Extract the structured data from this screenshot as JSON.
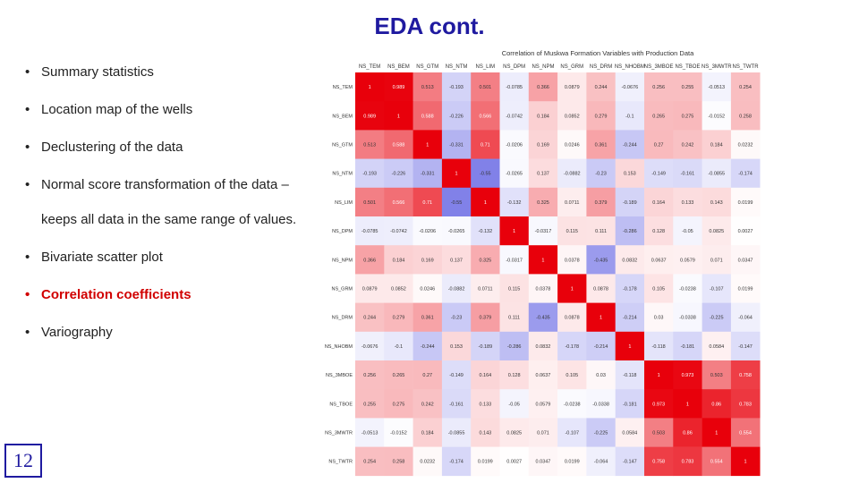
{
  "slide": {
    "title": "EDA cont.",
    "bullets": [
      "Summary statistics",
      "Location map of the wells",
      "Declustering of the data",
      "Normal score transformation of the data –",
      "Bivariate scatter plot",
      "Correlation coefficients",
      "Variography"
    ],
    "bullet_continuation": "keeps all data in the same range of values.",
    "highlighted_bullet_index": 5,
    "page_number": "12"
  },
  "colors": {
    "title": "#1f1aa0",
    "highlight": "#d10000",
    "positive": "#e8000b",
    "negative": "#1a1ad6"
  },
  "chart_data": {
    "type": "heatmap",
    "title": "Correlation of Muskwa Formation Variables with Production Data",
    "x_labels": [
      "NS_TEM",
      "NS_BEM",
      "NS_GTM",
      "NS_NTM",
      "NS_LIM",
      "NS_DPM",
      "NS_NPM",
      "NS_GRM",
      "NS_DRM",
      "NS_NHOBM",
      "NS_3MBOE",
      "NS_TBOE",
      "NS_3MWTR",
      "NS_TWTR"
    ],
    "y_labels": [
      "NS_TEM",
      "NS_BEM",
      "NS_GTM",
      "NS_NTM",
      "NS_LIM",
      "NS_DPM",
      "NS_NPM",
      "NS_GRM",
      "NS_DRM",
      "NS_NHOBM",
      "NS_3MBOE",
      "NS_TBOE",
      "NS_3MWTR",
      "NS_TWTR"
    ],
    "value_range": [
      -1,
      1
    ],
    "values": [
      [
        1,
        0.989,
        0.513,
        -0.193,
        0.501,
        -0.0785,
        0.366,
        0.0879,
        0.244,
        -0.0676,
        0.256,
        0.255,
        -0.0513,
        0.254
      ],
      [
        0.989,
        1,
        0.588,
        -0.226,
        0.566,
        -0.0742,
        0.184,
        0.0852,
        0.279,
        -0.1,
        0.265,
        0.275,
        -0.0152,
        0.258
      ],
      [
        0.513,
        0.588,
        1,
        -0.331,
        0.71,
        -0.0206,
        0.169,
        0.0246,
        0.361,
        -0.244,
        0.27,
        0.242,
        0.184,
        0.0232
      ],
      [
        -0.193,
        -0.226,
        -0.331,
        1,
        -0.55,
        -0.0265,
        0.137,
        -0.0882,
        -0.23,
        0.153,
        -0.149,
        -0.161,
        -0.0855,
        -0.174
      ],
      [
        0.501,
        0.566,
        0.71,
        -0.55,
        1,
        -0.132,
        0.325,
        0.0711,
        0.379,
        -0.189,
        0.164,
        0.133,
        0.143,
        0.0199
      ],
      [
        -0.0785,
        -0.0742,
        -0.0206,
        -0.0265,
        -0.132,
        1,
        -0.0317,
        0.115,
        0.111,
        -0.286,
        0.128,
        -0.05,
        0.0825,
        0.0027
      ],
      [
        0.366,
        0.184,
        0.169,
        0.137,
        0.325,
        -0.0317,
        1,
        0.0378,
        -0.435,
        0.0832,
        0.0637,
        0.0579,
        0.071,
        0.0347
      ],
      [
        0.0879,
        0.0852,
        0.0246,
        -0.0882,
        0.0711,
        0.115,
        0.0378,
        1,
        0.0878,
        -0.178,
        0.105,
        -0.0238,
        -0.107,
        0.0199
      ],
      [
        0.244,
        0.279,
        0.361,
        -0.23,
        0.379,
        0.111,
        -0.435,
        0.0878,
        1,
        -0.214,
        0.03,
        -0.0338,
        -0.225,
        -0.064
      ],
      [
        -0.0676,
        -0.1,
        -0.244,
        0.153,
        -0.189,
        -0.286,
        0.0832,
        -0.178,
        -0.214,
        1,
        -0.118,
        -0.181,
        0.0584,
        -0.147
      ],
      [
        0.256,
        0.265,
        0.27,
        -0.149,
        0.164,
        0.128,
        0.0637,
        0.105,
        0.03,
        -0.118,
        1,
        0.973,
        0.503,
        0.758
      ],
      [
        0.255,
        0.275,
        0.242,
        -0.161,
        0.133,
        -0.05,
        0.0579,
        -0.0238,
        -0.0338,
        -0.181,
        0.973,
        1,
        0.86,
        0.783
      ],
      [
        -0.0513,
        -0.0152,
        0.184,
        -0.0855,
        0.143,
        0.0825,
        0.071,
        -0.107,
        -0.225,
        0.0584,
        0.503,
        0.86,
        1,
        0.554
      ],
      [
        0.254,
        0.258,
        0.0232,
        -0.174,
        0.0199,
        0.0027,
        0.0347,
        0.0199,
        -0.064,
        -0.147,
        0.758,
        0.783,
        0.554,
        1
      ]
    ],
    "value_labels": [
      [
        "1",
        "0.989",
        "0.513",
        "-0.193",
        "0.501",
        "-0.0785",
        "0.366",
        "0.0879",
        "0.244",
        "-0.0676",
        "0.256",
        "0.255",
        "-0.0513",
        "0.254"
      ],
      [
        "0.989",
        "1",
        "0.588",
        "-0.226",
        "0.566",
        "-0.0742",
        "0.184",
        "0.0852",
        "0.279",
        "-0.1",
        "0.265",
        "0.275",
        "-0.0152",
        "0.258"
      ],
      [
        "0.513",
        "0.588",
        "1",
        "-0.331",
        "0.71",
        "-0.0206",
        "0.169",
        "0.0246",
        "0.361",
        "-0.244",
        "0.27",
        "0.242",
        "0.184",
        "0.0232"
      ],
      [
        "-0.193",
        "-0.226",
        "-0.331",
        "1",
        "-0.55",
        "-0.0265",
        "0.137",
        "-0.0882",
        "-0.23",
        "0.153",
        "-0.149",
        "-0.161",
        "-0.0855",
        "-0.174"
      ],
      [
        "0.501",
        "0.566",
        "0.71",
        "-0.55",
        "1",
        "-0.132",
        "0.325",
        "0.0711",
        "0.379",
        "-0.189",
        "0.164",
        "0.133",
        "0.143",
        "0.0199"
      ],
      [
        "-0.0785",
        "-0.0742",
        "-0.0206",
        "-0.0265",
        "-0.132",
        "1",
        "-0.0317",
        "0.115",
        "0.111",
        "-0.286",
        "0.128",
        "-0.05",
        "0.0825",
        "0.0027"
      ],
      [
        "0.366",
        "0.184",
        "0.169",
        "0.137",
        "0.325",
        "-0.0317",
        "1",
        "0.0378",
        "-0.435",
        "0.0832",
        "0.0637",
        "0.0579",
        "0.071",
        "0.0347"
      ],
      [
        "0.0879",
        "0.0852",
        "0.0246",
        "-0.0882",
        "0.0711",
        "0.115",
        "0.0378",
        "1",
        "0.0878",
        "-0.178",
        "0.105",
        "-0.0238",
        "-0.107",
        "0.0199"
      ],
      [
        "0.244",
        "0.279",
        "0.361",
        "-0.23",
        "0.379",
        "0.111",
        "-0.435",
        "0.0878",
        "1",
        "-0.214",
        "0.03",
        "-0.0338",
        "-0.225",
        "-0.064"
      ],
      [
        "-0.0676",
        "-0.1",
        "-0.244",
        "0.153",
        "-0.189",
        "-0.286",
        "0.0832",
        "-0.178",
        "-0.214",
        "1",
        "-0.118",
        "-0.181",
        "0.0584",
        "-0.147"
      ],
      [
        "0.256",
        "0.265",
        "0.27",
        "-0.149",
        "0.164",
        "0.128",
        "0.0637",
        "0.105",
        "0.03",
        "-0.118",
        "1",
        "0.973",
        "0.503",
        "0.758"
      ],
      [
        "0.255",
        "0.275",
        "0.242",
        "-0.161",
        "0.133",
        "-0.05",
        "0.0579",
        "-0.0238",
        "-0.0338",
        "-0.181",
        "0.973",
        "1",
        "0.86",
        "0.783"
      ],
      [
        "-0.0513",
        "-0.0152",
        "0.184",
        "-0.0855",
        "0.143",
        "0.0825",
        "0.071",
        "-0.107",
        "-0.225",
        "0.0584",
        "0.503",
        "0.86",
        "1",
        "0.554"
      ],
      [
        "0.254",
        "0.258",
        "0.0232",
        "-0.174",
        "0.0199",
        "0.0027",
        "0.0347",
        "0.0199",
        "-0.064",
        "-0.147",
        "0.758",
        "0.783",
        "0.554",
        "1"
      ]
    ],
    "colormap": "bwr",
    "grid": false,
    "legend": "none"
  }
}
